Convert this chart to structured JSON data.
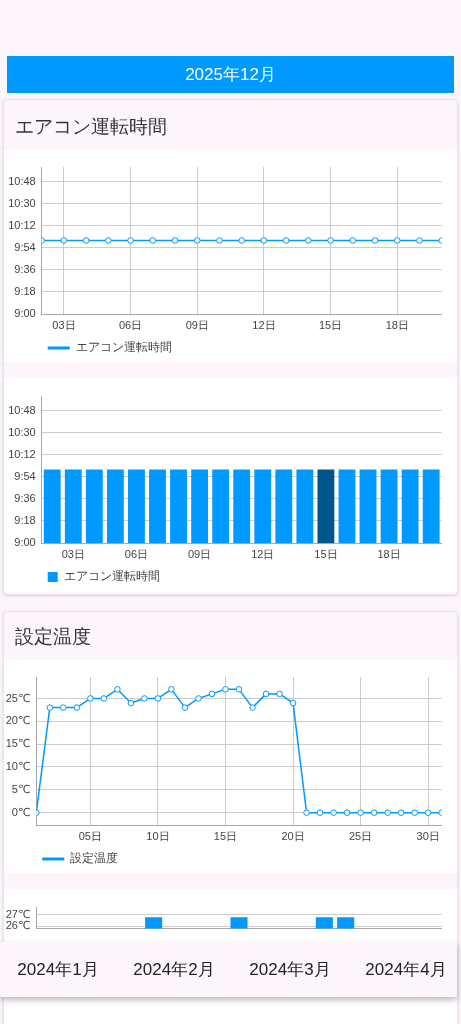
{
  "chart_data": [
    {
      "type": "line",
      "title": "エアコン運転時間",
      "annotations": [
        "2025年12月"
      ],
      "x": [
        2,
        3,
        4,
        5,
        6,
        7,
        8,
        9,
        10,
        11,
        12,
        13,
        14,
        15,
        16,
        17,
        18,
        19,
        20
      ],
      "xlim": [
        2,
        20
      ],
      "xticks": [
        {
          "value": 3,
          "label": "03日"
        },
        {
          "value": 6,
          "label": "06日"
        },
        {
          "value": 9,
          "label": "09日"
        },
        {
          "value": 12,
          "label": "12日"
        },
        {
          "value": 15,
          "label": "15日"
        },
        {
          "value": 18,
          "label": "18日"
        }
      ],
      "ylim": [
        9,
        11
      ],
      "yticks": [
        {
          "value": 9,
          "label": "9:00"
        },
        {
          "value": 9.3,
          "label": "9:18"
        },
        {
          "value": 9.6,
          "label": "9:36"
        },
        {
          "value": 9.9,
          "label": "9:54"
        },
        {
          "value": 10.2,
          "label": "10:12"
        },
        {
          "value": 10.5,
          "label": "10:30"
        },
        {
          "value": 10.8,
          "label": "10:48"
        }
      ],
      "series": [
        {
          "name": "エアコン運転時間",
          "color": "#0099ff",
          "values": [
            10,
            10,
            10,
            10,
            10,
            10,
            10,
            10,
            10,
            10,
            10,
            10,
            10,
            10,
            10,
            10,
            10,
            10,
            10
          ]
        }
      ],
      "grid": true,
      "legend": "bottom left",
      "marker": "circle"
    },
    {
      "type": "bar",
      "categories": [
        null,
        "03日",
        null,
        null,
        "06日",
        null,
        null,
        "09日",
        null,
        null,
        "12日",
        null,
        null,
        "15日",
        null,
        null,
        "18日",
        null,
        null
      ],
      "ylim": [
        9,
        11
      ],
      "yticks": [
        {
          "value": 9,
          "label": "9:00"
        },
        {
          "value": 9.3,
          "label": "9:18"
        },
        {
          "value": 9.6,
          "label": "9:36"
        },
        {
          "value": 9.9,
          "label": "9:54"
        },
        {
          "value": 10.2,
          "label": "10:12"
        },
        {
          "value": 10.5,
          "label": "10:30"
        },
        {
          "value": 10.8,
          "label": "10:48"
        }
      ],
      "series": [
        {
          "name": "エアコン運転時間",
          "color": "#0099ff",
          "colors": [
            "#0099ff",
            "#0099ff",
            "#0099ff",
            "#0099ff",
            "#0099ff",
            "#0099ff",
            "#0099ff",
            "#0099ff",
            "#0099ff",
            "#0099ff",
            "#0099ff",
            "#0099ff",
            "#0099ff",
            "#00558a",
            "#0099ff",
            "#0099ff",
            "#0099ff",
            "#0099ff",
            "#0099ff"
          ],
          "values": [
            10,
            10,
            10,
            10,
            10,
            10,
            10,
            10,
            10,
            10,
            10,
            10,
            10,
            10,
            10,
            10,
            10,
            10,
            10
          ]
        }
      ],
      "grid": "y",
      "legend": "bottom left"
    },
    {
      "type": "line",
      "title": "設定温度",
      "x": [
        1,
        2,
        3,
        4,
        5,
        6,
        7,
        8,
        9,
        10,
        11,
        12,
        13,
        14,
        15,
        16,
        17,
        18,
        19,
        20,
        21,
        22,
        23,
        24,
        25,
        26,
        27,
        28,
        29,
        30,
        31
      ],
      "xlim": [
        1,
        31
      ],
      "xticks": [
        {
          "value": 5,
          "label": "05日"
        },
        {
          "value": 10,
          "label": "10日"
        },
        {
          "value": 15,
          "label": "15日"
        },
        {
          "value": 20,
          "label": "20日"
        },
        {
          "value": 25,
          "label": "25日"
        },
        {
          "value": 30,
          "label": "30日"
        }
      ],
      "ylim": [
        -2.7,
        29.7
      ],
      "yticks": [
        {
          "value": 0,
          "label": "0℃"
        },
        {
          "value": 5,
          "label": "5℃"
        },
        {
          "value": 10,
          "label": "10℃"
        },
        {
          "value": 15,
          "label": "15℃"
        },
        {
          "value": 20,
          "label": "20℃"
        },
        {
          "value": 25,
          "label": "25℃"
        }
      ],
      "series": [
        {
          "name": "設定温度",
          "color": "#0099ff",
          "values": [
            0,
            23,
            23,
            23,
            25,
            25,
            27,
            24,
            25,
            25,
            27,
            23,
            25,
            26,
            27,
            27,
            23,
            26,
            26,
            24,
            0,
            0,
            0,
            0,
            0,
            0,
            0,
            0,
            0,
            0,
            0
          ]
        }
      ],
      "grid": true,
      "legend": "bottom left",
      "marker": "circle"
    },
    {
      "type": "bar",
      "categories": [
        null,
        null,
        null,
        null,
        null,
        null,
        null,
        null,
        null,
        null,
        null,
        null,
        null,
        null,
        null,
        null,
        null,
        null,
        null
      ],
      "ylim": [
        25.8,
        27.7
      ],
      "yticks": [
        {
          "value": 26,
          "label": "26℃"
        },
        {
          "value": 27,
          "label": "27℃"
        }
      ],
      "series": [
        {
          "color": "#0099ff",
          "values": [
            null,
            null,
            null,
            null,
            null,
            26.8,
            null,
            null,
            null,
            26.8,
            null,
            null,
            null,
            26.8,
            26.8,
            null,
            null,
            null,
            null
          ]
        }
      ],
      "grid": "y",
      "tick_labels": "y",
      "annotations": [
        "2024年1月",
        "2024年2月",
        "2024年3月",
        "2024年4月"
      ]
    }
  ]
}
